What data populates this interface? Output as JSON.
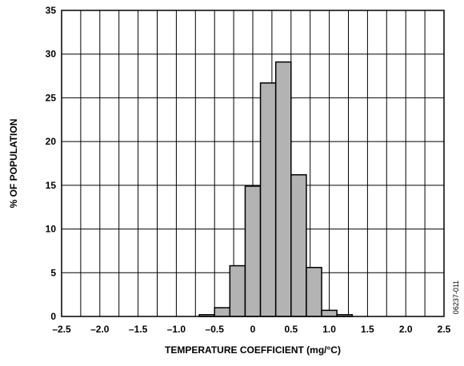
{
  "chart_data": {
    "type": "bar",
    "title": "",
    "xlabel": "TEMPERATURE COEFFICIENT (mg/°C)",
    "ylabel": "% OF POPULATION",
    "xlim": [
      -2.5,
      2.5
    ],
    "ylim": [
      0,
      35
    ],
    "grid": true,
    "bin_width": 0.2,
    "x_ticks": [
      {
        "value": -2.5,
        "label": "–2.5"
      },
      {
        "value": -2.0,
        "label": "–2.0"
      },
      {
        "value": -1.5,
        "label": "–1.5"
      },
      {
        "value": -1.0,
        "label": "–1.0"
      },
      {
        "value": -0.5,
        "label": "–0.5"
      },
      {
        "value": 0,
        "label": "0"
      },
      {
        "value": 0.5,
        "label": "0.5"
      },
      {
        "value": 1.0,
        "label": "1.0"
      },
      {
        "value": 1.5,
        "label": "1.5"
      },
      {
        "value": 2.0,
        "label": "2.0"
      },
      {
        "value": 2.5,
        "label": "2.5"
      }
    ],
    "y_ticks": [
      {
        "value": 0,
        "label": "0"
      },
      {
        "value": 5,
        "label": "5"
      },
      {
        "value": 10,
        "label": "10"
      },
      {
        "value": 15,
        "label": "15"
      },
      {
        "value": 20,
        "label": "20"
      },
      {
        "value": 25,
        "label": "25"
      },
      {
        "value": 30,
        "label": "30"
      },
      {
        "value": 35,
        "label": "35"
      }
    ],
    "bins": [
      {
        "x0": -0.7,
        "x1": -0.5,
        "value": 0.2
      },
      {
        "x0": -0.5,
        "x1": -0.3,
        "value": 1.0
      },
      {
        "x0": -0.3,
        "x1": -0.1,
        "value": 5.8
      },
      {
        "x0": -0.1,
        "x1": 0.1,
        "value": 14.9
      },
      {
        "x0": 0.1,
        "x1": 0.3,
        "value": 26.7
      },
      {
        "x0": 0.3,
        "x1": 0.5,
        "value": 29.1
      },
      {
        "x0": 0.5,
        "x1": 0.7,
        "value": 16.2
      },
      {
        "x0": 0.7,
        "x1": 0.9,
        "value": 5.6
      },
      {
        "x0": 0.9,
        "x1": 1.1,
        "value": 0.7
      },
      {
        "x0": 1.1,
        "x1": 1.3,
        "value": 0.2
      }
    ],
    "colors": {
      "bar": "#b3b3b3",
      "edge": "#000000",
      "grid": "#000000"
    }
  },
  "doc_code": "06237-011"
}
